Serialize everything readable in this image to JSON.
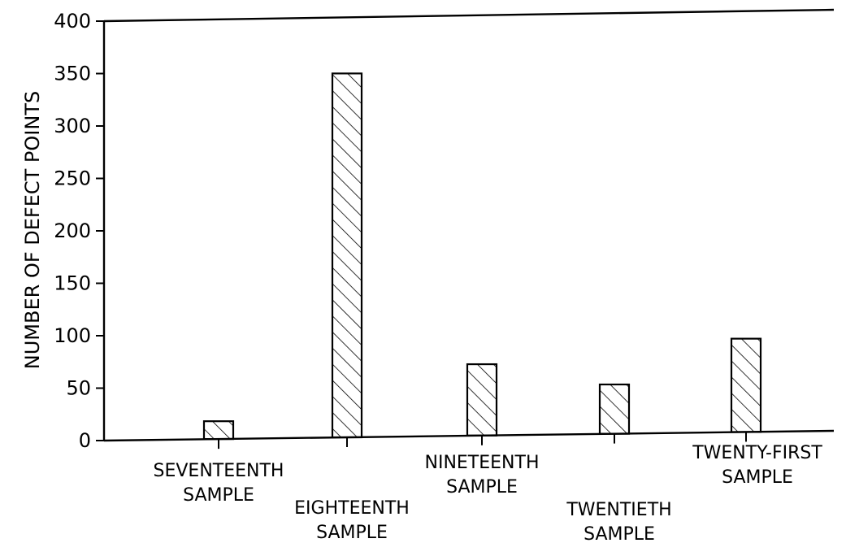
{
  "chart_data": {
    "type": "bar",
    "title": "",
    "xlabel": "",
    "ylabel": "NUMBER OF DEFECT POINTS",
    "ylim": [
      0,
      400
    ],
    "yticks": [
      "0",
      "50",
      "100",
      "150",
      "200",
      "250",
      "300",
      "350",
      "400"
    ],
    "grid": false,
    "legend": "none",
    "bar_fill": "hatched",
    "categories": [
      "SEVENTEENTH SAMPLE",
      "EIGHTEENTH SAMPLE",
      "NINETEENTH SAMPLE",
      "TWENTIETH SAMPLE",
      "TWENTY-FIRST SAMPLE"
    ],
    "category_lines": [
      [
        "SEVENTEENTH",
        "SAMPLE"
      ],
      [
        "EIGHTEENTH",
        "SAMPLE"
      ],
      [
        "NINETEENTH",
        "SAMPLE"
      ],
      [
        "TWENTIETH",
        "SAMPLE"
      ],
      [
        "TWENTY-FIRST",
        "SAMPLE"
      ]
    ],
    "values": [
      17,
      347,
      68,
      47,
      89
    ],
    "colors": {
      "stroke": "#000000",
      "background": "#ffffff"
    }
  }
}
